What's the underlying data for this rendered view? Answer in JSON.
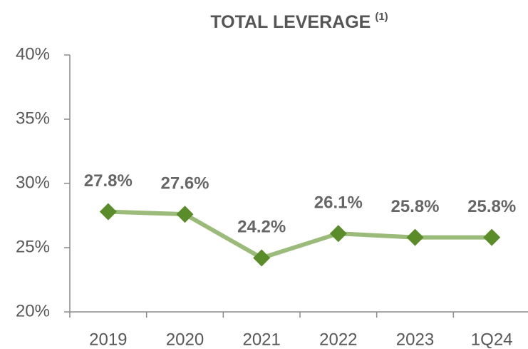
{
  "chart_data": {
    "type": "line",
    "title": "TOTAL LEVERAGE",
    "title_note": "(1)",
    "categories": [
      "2019",
      "2020",
      "2021",
      "2022",
      "2023",
      "1Q24"
    ],
    "values": [
      27.8,
      27.6,
      24.2,
      26.1,
      25.8,
      25.8
    ],
    "value_labels": [
      "27.8%",
      "27.6%",
      "24.2%",
      "26.1%",
      "25.8%",
      "25.8%"
    ],
    "line_color": "#9bbb7a",
    "marker_color": "#5b8c2a",
    "ylim": [
      20,
      40
    ],
    "yticks": [
      {
        "value": 20,
        "label": "20%"
      },
      {
        "value": 25,
        "label": "25%"
      },
      {
        "value": 30,
        "label": "30%"
      },
      {
        "value": 35,
        "label": "35%"
      },
      {
        "value": 40,
        "label": "40%"
      }
    ],
    "grid": false
  }
}
